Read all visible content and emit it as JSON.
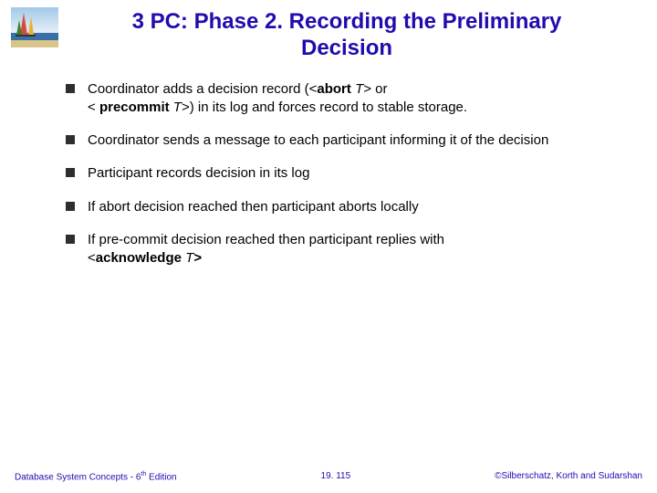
{
  "title_line1": "3 PC: Phase 2. Recording the Preliminary",
  "title_line2": "Decision",
  "bullets": [
    {
      "segments": [
        {
          "text": "Coordinator adds a decision record (<",
          "style": ""
        },
        {
          "text": "abort ",
          "style": "bold"
        },
        {
          "text": "T",
          "style": "italic"
        },
        {
          "text": "> or",
          "style": ""
        },
        {
          "text": "\n",
          "style": "br"
        },
        {
          "text": "< ",
          "style": ""
        },
        {
          "text": "precommit ",
          "style": "bold"
        },
        {
          "text": "T",
          "style": "italic"
        },
        {
          "text": ">) in its log and forces record to stable storage.",
          "style": ""
        }
      ]
    },
    {
      "segments": [
        {
          "text": "Coordinator sends a message to each participant informing it of the decision",
          "style": ""
        }
      ]
    },
    {
      "segments": [
        {
          "text": "Participant records decision in its log",
          "style": ""
        }
      ]
    },
    {
      "segments": [
        {
          "text": "If abort decision reached then participant aborts locally",
          "style": ""
        }
      ]
    },
    {
      "segments": [
        {
          "text": "If pre-commit decision reached then participant replies with",
          "style": ""
        },
        {
          "text": "\n",
          "style": "br"
        },
        {
          "text": "<",
          "style": ""
        },
        {
          "text": "acknowledge ",
          "style": "bold"
        },
        {
          "text": "T",
          "style": "italic"
        },
        {
          "text": ">",
          "style": "bold"
        }
      ]
    }
  ],
  "footer": {
    "left_text": "Database System Concepts - 6",
    "left_super": "th",
    "left_after": " Edition",
    "center": "19. 115",
    "right": "©Silberschatz, Korth and Sudarshan"
  },
  "colors": {
    "title": "#1f0cad",
    "footer": "#1f0cad",
    "bullet_marker": "#2e2e2e",
    "text": "#000000",
    "background": "#ffffff"
  },
  "logo": {
    "sky_top": "#a2c8e8",
    "sky_bottom": "#e6f0f7",
    "sea": "#3a6fa8",
    "sand": "#d9c48a",
    "sail1": "#d94a3a",
    "sail2": "#e8b030",
    "sail3": "#3a8030"
  }
}
